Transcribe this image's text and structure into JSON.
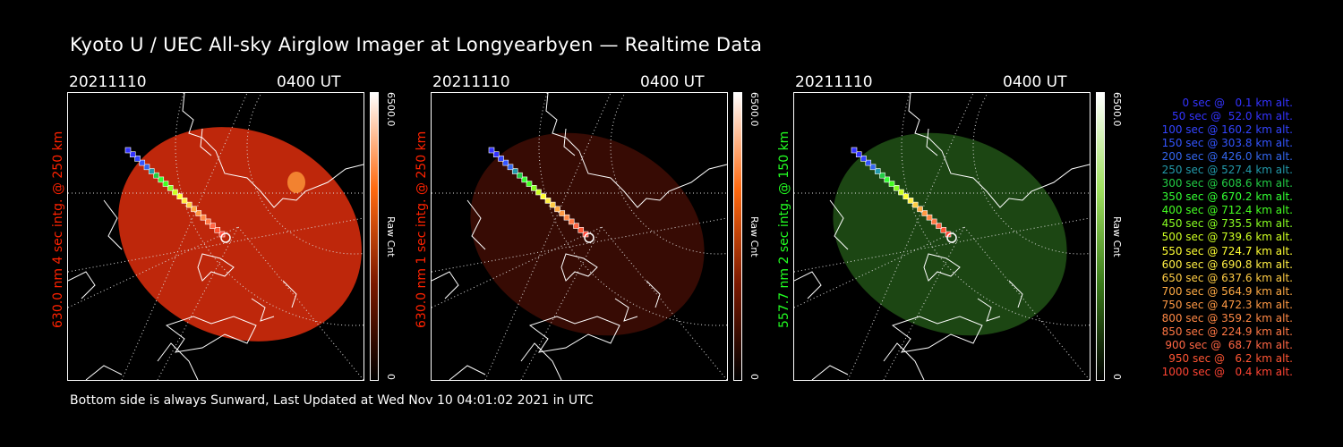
{
  "title": "Kyoto U / UEC All-sky Airglow Imager at Longyearbyen — Realtime Data",
  "footer": "Bottom side is always Sunward, Last Updated at Wed Nov 10 04:01:02 2021 in UTC",
  "panels": [
    {
      "date": "20211110",
      "time": "0400 UT",
      "ylabel": "630.0 nm 4 sec intg. @ 250 km",
      "colorbar_max": "6500.0",
      "colorbar_min": "0",
      "colorbar_unit": "Raw Cnt",
      "color": "#ff2200",
      "image_fill": "#c8290c",
      "image_opacity": 0.95
    },
    {
      "date": "20211110",
      "time": "0400 UT",
      "ylabel": "630.0 nm 1 sec intg. @ 250 km",
      "colorbar_max": "6500.0",
      "colorbar_min": "0",
      "colorbar_unit": "Raw Cnt",
      "color": "#ff2200",
      "image_fill": "#3a0c04",
      "image_opacity": 0.95
    },
    {
      "date": "20211110",
      "time": "0400 UT",
      "ylabel": "557.7 nm 2 sec intg. @ 150 km",
      "colorbar_max": "6500.0",
      "colorbar_min": "0",
      "colorbar_unit": "Raw Cnt",
      "color": "#22ff22",
      "image_fill": "#1d4a14",
      "image_opacity": 0.95
    }
  ],
  "legend": [
    {
      "text": "0 sec @   0.1 km alt.",
      "color": "#3333ff"
    },
    {
      "text": "50 sec @  52.0 km alt.",
      "color": "#3333ff"
    },
    {
      "text": "100 sec @ 160.2 km alt.",
      "color": "#3344ff"
    },
    {
      "text": "150 sec @ 303.8 km alt.",
      "color": "#3355ff"
    },
    {
      "text": "200 sec @ 426.0 km alt.",
      "color": "#3366ee"
    },
    {
      "text": "250 sec @ 527.4 km alt.",
      "color": "#2299aa"
    },
    {
      "text": "300 sec @ 608.6 km alt.",
      "color": "#22cc44"
    },
    {
      "text": "350 sec @ 670.2 km alt.",
      "color": "#33ff33"
    },
    {
      "text": "400 sec @ 712.4 km alt.",
      "color": "#44ff22"
    },
    {
      "text": "450 sec @ 735.5 km alt.",
      "color": "#88ff22"
    },
    {
      "text": "500 sec @ 739.6 km alt.",
      "color": "#ccff22"
    },
    {
      "text": "550 sec @ 724.7 km alt.",
      "color": "#ffff33"
    },
    {
      "text": "600 sec @ 690.8 km alt.",
      "color": "#ffee44"
    },
    {
      "text": "650 sec @ 637.6 km alt.",
      "color": "#ffcc44"
    },
    {
      "text": "700 sec @ 564.9 km alt.",
      "color": "#ffaa44"
    },
    {
      "text": "750 sec @ 472.3 km alt.",
      "color": "#ff9944"
    },
    {
      "text": "800 sec @ 359.2 km alt.",
      "color": "#ff8844"
    },
    {
      "text": "850 sec @ 224.9 km alt.",
      "color": "#ff7744"
    },
    {
      "text": "900 sec @  68.7 km alt.",
      "color": "#ff6644"
    },
    {
      "text": "950 sec @   6.2 km alt.",
      "color": "#ff5533"
    },
    {
      "text": "1000 sec @   0.4 km alt.",
      "color": "#ff4433"
    }
  ]
}
